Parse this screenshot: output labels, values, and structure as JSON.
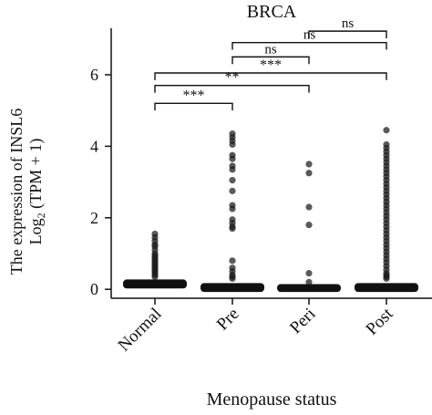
{
  "chart_data": {
    "type": "boxplot",
    "title": "BRCA",
    "xlabel": "Menopause status",
    "ylabel_line1": "The expression of INSL6",
    "ylabel_line2": {
      "prefix": "Log",
      "subscript": "2",
      "suffix": " (TPM + 1)"
    },
    "ylim": [
      -0.25,
      7.3
    ],
    "yticks": [
      0,
      2,
      4,
      6
    ],
    "categories": [
      "Normal",
      "Pre",
      "Peri",
      "Post"
    ],
    "series": [
      {
        "category": "Normal",
        "box": {
          "q1": 0.05,
          "median": 0.15,
          "q3": 0.25
        },
        "outliers": [
          1.55,
          1.45,
          1.35,
          1.25,
          1.2,
          1.1,
          1.0,
          0.95,
          0.9,
          0.85,
          0.8,
          0.75,
          0.7,
          0.65,
          0.6,
          0.55,
          0.5,
          0.45,
          0.4,
          0.35
        ]
      },
      {
        "category": "Pre",
        "box": {
          "q1": -0.05,
          "median": 0.05,
          "q3": 0.15
        },
        "outliers": [
          4.35,
          4.25,
          4.15,
          4.05,
          3.75,
          3.65,
          3.45,
          3.35,
          3.05,
          2.75,
          2.35,
          2.25,
          1.95,
          1.85,
          1.75,
          1.7,
          0.8,
          0.6,
          0.5,
          0.4,
          0.35,
          0.3
        ]
      },
      {
        "category": "Peri",
        "box": {
          "q1": -0.05,
          "median": 0.05,
          "q3": 0.12
        },
        "outliers": [
          3.5,
          3.25,
          2.3,
          1.8,
          0.45,
          0.2
        ]
      },
      {
        "category": "Post",
        "box": {
          "q1": -0.05,
          "median": 0.05,
          "q3": 0.15
        },
        "outliers": [
          4.45,
          4.05,
          3.95,
          3.85,
          3.75,
          3.65,
          3.55,
          3.45,
          3.35,
          3.25,
          3.15,
          3.05,
          2.95,
          2.85,
          2.75,
          2.65,
          2.55,
          2.45,
          2.35,
          2.25,
          2.15,
          2.05,
          1.95,
          1.85,
          1.75,
          1.65,
          1.55,
          1.45,
          1.35,
          1.25,
          1.15,
          1.05,
          0.95,
          0.85,
          0.75,
          0.65,
          0.55,
          0.45,
          0.4,
          0.35,
          0.3
        ]
      }
    ],
    "comparisons": [
      {
        "from": "Normal",
        "to": "Pre",
        "label": "***"
      },
      {
        "from": "Normal",
        "to": "Peri",
        "label": "**"
      },
      {
        "from": "Normal",
        "to": "Post",
        "label": "***"
      },
      {
        "from": "Pre",
        "to": "Peri",
        "label": "ns"
      },
      {
        "from": "Pre",
        "to": "Post",
        "label": "ns"
      },
      {
        "from": "Peri",
        "to": "Post",
        "label": "ns"
      }
    ],
    "colors": {
      "box": "#111111",
      "outlier": "#1a1a1a",
      "axis": "#111111"
    },
    "grid": false
  }
}
